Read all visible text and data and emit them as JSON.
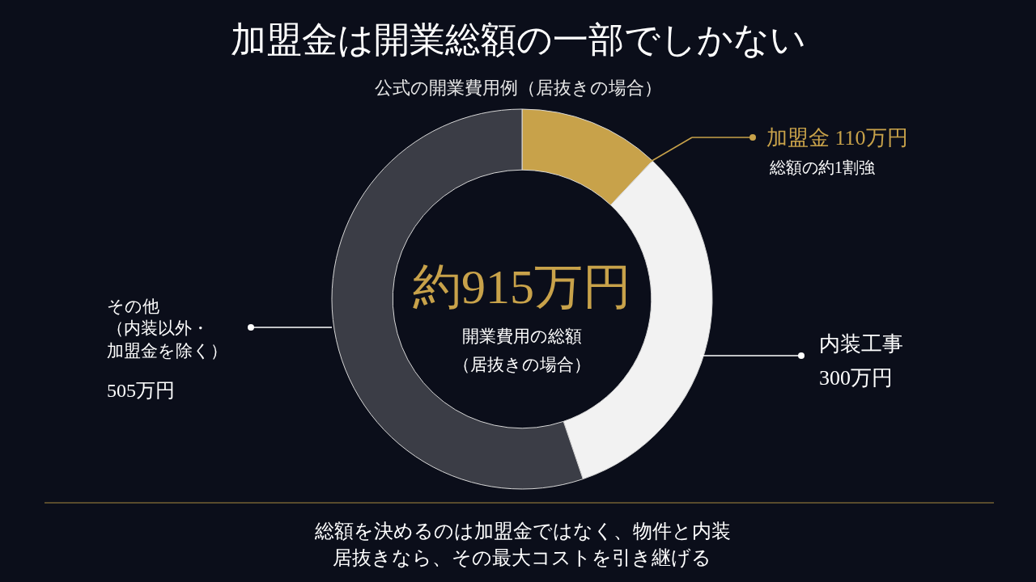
{
  "chart_data": {
    "type": "donut",
    "title": "加盟金は開業総額の一部でしかない",
    "subtitle": "公式の開業費用例（居抜きの場合）",
    "categories": [
      "加盟金",
      "内装工事",
      "その他（内装以外・加盟金を除く）"
    ],
    "legend": "right",
    "values": [
      110,
      300,
      505
    ],
    "value_labels": [
      "110万円",
      "300万円",
      "505万円"
    ],
    "colors": [
      "#c8a24a",
      "#f2f2f2",
      "#3b3d46"
    ],
    "annotations": [
      "総額の約1割強",
      "約915万円",
      "開業費用の総額",
      "（居抜きの場合）",
      "総額を決めるのは加盟金ではなく、物件と内装",
      "居抜きなら、その最大コストを引き継げる"
    ]
  }
}
